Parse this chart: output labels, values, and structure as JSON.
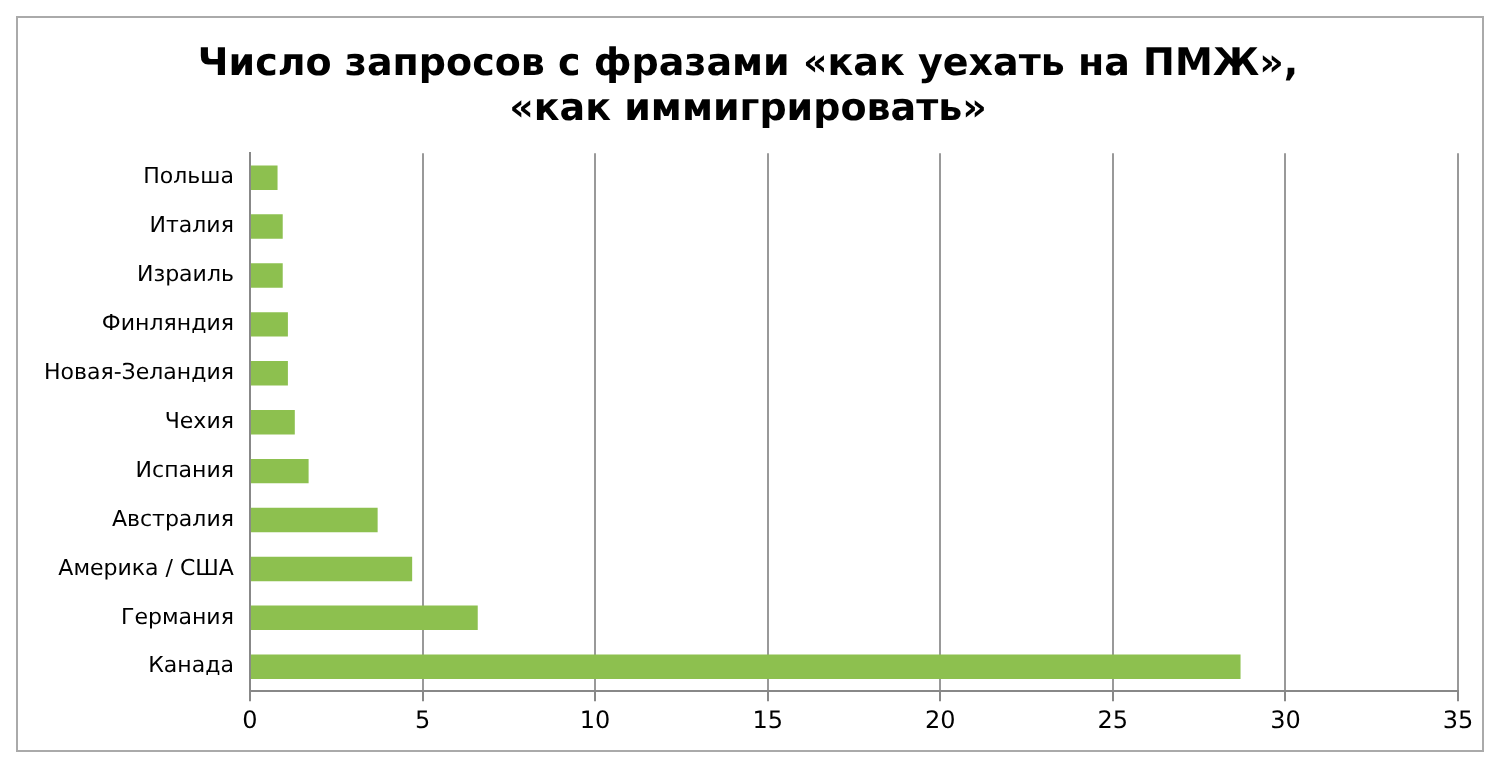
{
  "chart_data": {
    "type": "bar",
    "orientation": "horizontal",
    "title": "Число запросов с фразами «как уехать на ПМЖ», «как иммигрировать»",
    "categories": [
      "Польша",
      "Италия",
      "Израиль",
      "Финляндия",
      "Новая-Зеландия",
      "Чехия",
      "Испания",
      "Австралия",
      "Америка / США",
      "Германия",
      "Канада"
    ],
    "values": [
      0.8,
      0.95,
      0.95,
      1.1,
      1.1,
      1.3,
      1.7,
      3.7,
      4.7,
      6.6,
      28.7
    ],
    "color": "#8dc04f",
    "xlim": [
      0,
      35
    ],
    "xticks": [
      0,
      5,
      10,
      15,
      20,
      25,
      30,
      35
    ],
    "grid": "x",
    "legend": false
  }
}
